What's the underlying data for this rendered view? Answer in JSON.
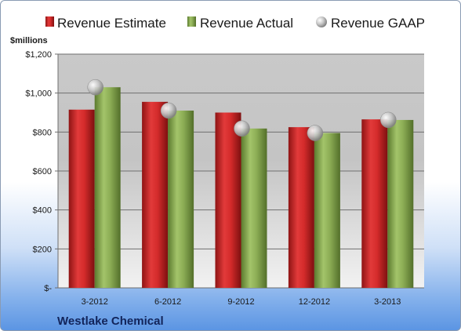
{
  "chart_data": {
    "type": "bar",
    "units_label": "$millions",
    "company": "Westlake Chemical",
    "categories": [
      "3-2012",
      "6-2012",
      "9-2012",
      "12-2012",
      "3-2013"
    ],
    "series": [
      {
        "name": "Revenue Estimate",
        "kind": "bar",
        "color": "#d42b2b",
        "values": [
          915,
          955,
          900,
          825,
          865
        ]
      },
      {
        "name": "Revenue Actual",
        "kind": "bar",
        "color": "#8cad55",
        "values": [
          1030,
          910,
          818,
          795,
          862
        ]
      },
      {
        "name": "Revenue GAAP",
        "kind": "marker",
        "color": "#b8b8b8",
        "values": [
          1030,
          910,
          818,
          795,
          862
        ]
      }
    ],
    "ylim": [
      0,
      1200
    ],
    "yticks": [
      {
        "value": 0,
        "label": "$-"
      },
      {
        "value": 200,
        "label": "$200"
      },
      {
        "value": 400,
        "label": "$400"
      },
      {
        "value": 600,
        "label": "$600"
      },
      {
        "value": 800,
        "label": "$800"
      },
      {
        "value": 1000,
        "label": "$1,000"
      },
      {
        "value": 1200,
        "label": "$1,200"
      }
    ],
    "grid": true,
    "legend_position": "top"
  }
}
